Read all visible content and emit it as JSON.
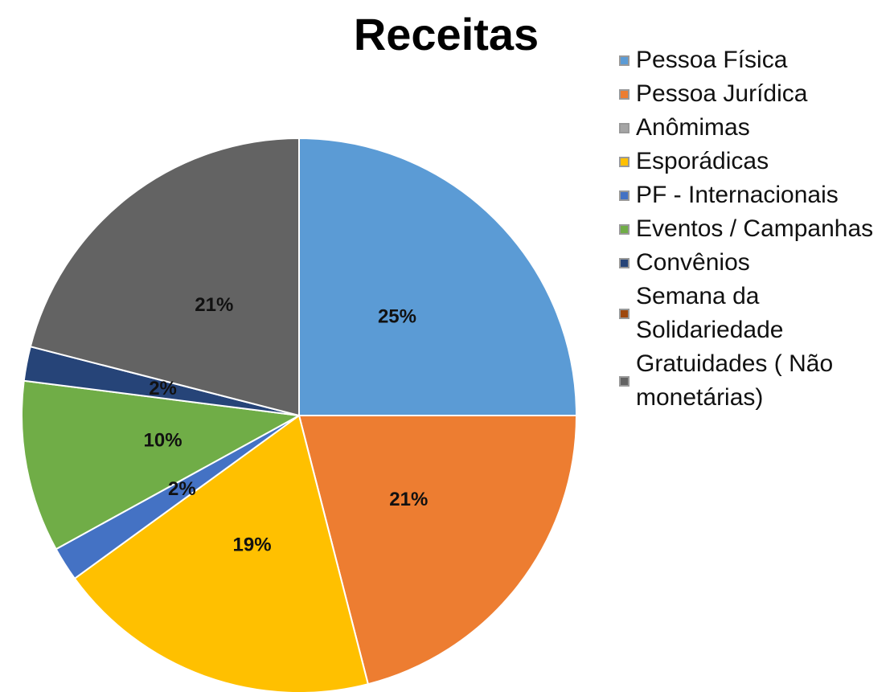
{
  "chart_data": {
    "type": "pie",
    "title": "Receitas",
    "categories": [
      "Pessoa Física",
      "Pessoa Jurídica",
      "Anômimas",
      "Esporádicas",
      "PF - Internacionais",
      "Eventos / Campanhas",
      "Convênios",
      "Semana da Solidariedade",
      "Gratuidades ( Não monetárias)"
    ],
    "values": [
      25,
      21,
      0,
      19,
      2,
      10,
      2,
      0,
      21
    ],
    "value_labels": [
      "25%",
      "21%",
      null,
      "19%",
      "2%",
      "10%",
      "2%",
      null,
      "21%"
    ],
    "colors": [
      "#5b9bd5",
      "#ed7d31",
      "#a5a5a5",
      "#ffc000",
      "#4472c4",
      "#70ad47",
      "#264478",
      "#9e480e",
      "#636363"
    ],
    "legend": "right"
  }
}
